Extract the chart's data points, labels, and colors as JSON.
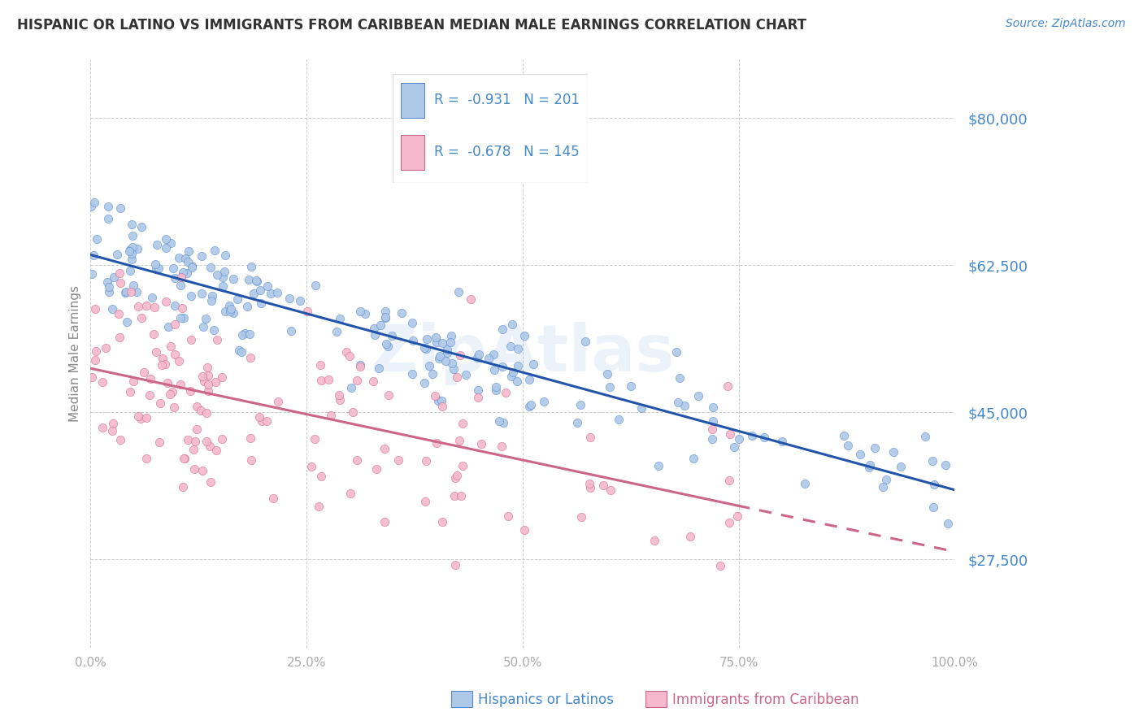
{
  "title": "HISPANIC OR LATINO VS IMMIGRANTS FROM CARIBBEAN MEDIAN MALE EARNINGS CORRELATION CHART",
  "source": "Source: ZipAtlas.com",
  "ylabel": "Median Male Earnings",
  "yticks": [
    27500,
    45000,
    62500,
    80000
  ],
  "ytick_labels": [
    "$27,500",
    "$45,000",
    "$62,500",
    "$80,000"
  ],
  "ylim": [
    17000,
    87000
  ],
  "xlim": [
    0.0,
    1.0
  ],
  "xticks": [
    0.0,
    0.25,
    0.5,
    0.75,
    1.0
  ],
  "xtick_labels": [
    "0.0%",
    "25.0%",
    "50.0%",
    "75.0%",
    "100.0%"
  ],
  "series": [
    {
      "name": "Hispanics or Latinos",
      "R": -0.931,
      "N": 201,
      "dot_color": "#aec8e8",
      "dot_edge_color": "#5588cc",
      "line_color": "#2255aa",
      "legend_box_color": "#aec8e8",
      "legend_box_edge": "#5588cc"
    },
    {
      "name": "Immigrants from Caribbean",
      "R": -0.678,
      "N": 145,
      "dot_color": "#f5b8cc",
      "dot_edge_color": "#cc6688",
      "line_color": "#cc6688",
      "legend_box_color": "#f5b8cc",
      "legend_box_edge": "#cc6688"
    }
  ],
  "legend_text_color": "#4488cc",
  "legend_r_blue": "R = -0.931",
  "legend_n_blue": "N = 201",
  "legend_r_pink": "R = -0.678",
  "legend_n_pink": "N = 145",
  "watermark": "ZipAtlas",
  "watermark_color": "#4488cc",
  "watermark_alpha": 0.1,
  "ytick_color": "#4488cc",
  "xtick_color": "#aaaaaa",
  "grid_color": "#cccccc",
  "title_color": "#333333",
  "source_color": "#4488cc",
  "ylabel_color": "#888888",
  "bottom_legend_blue_color": "#4488cc",
  "bottom_legend_pink_color": "#cc6688"
}
